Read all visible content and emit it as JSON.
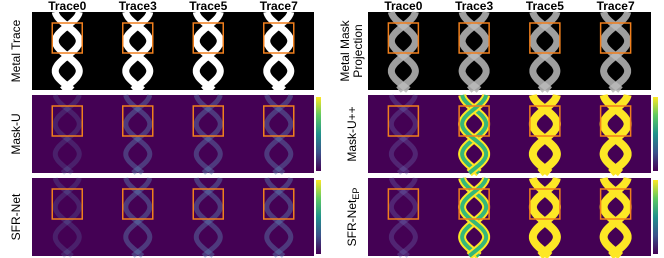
{
  "left": {
    "columns": [
      "Trace0",
      "Trace3",
      "Trace5",
      "Trace7"
    ],
    "row_labels": [
      {
        "lines": [
          "Metal Trace"
        ]
      },
      {
        "lines": [
          "Mask-U"
        ]
      },
      {
        "lines": [
          "SFR-Net"
        ]
      }
    ]
  },
  "right": {
    "columns": [
      "Trace0",
      "Trace3",
      "Trace5",
      "Trace7"
    ],
    "row_labels": [
      {
        "lines": [
          "Metal Mask",
          "Projection"
        ]
      },
      {
        "lines": [
          "Mask-U++"
        ]
      },
      {
        "lines": [
          "SFR-Net"
        ],
        "subscript": "EP"
      }
    ]
  }
}
